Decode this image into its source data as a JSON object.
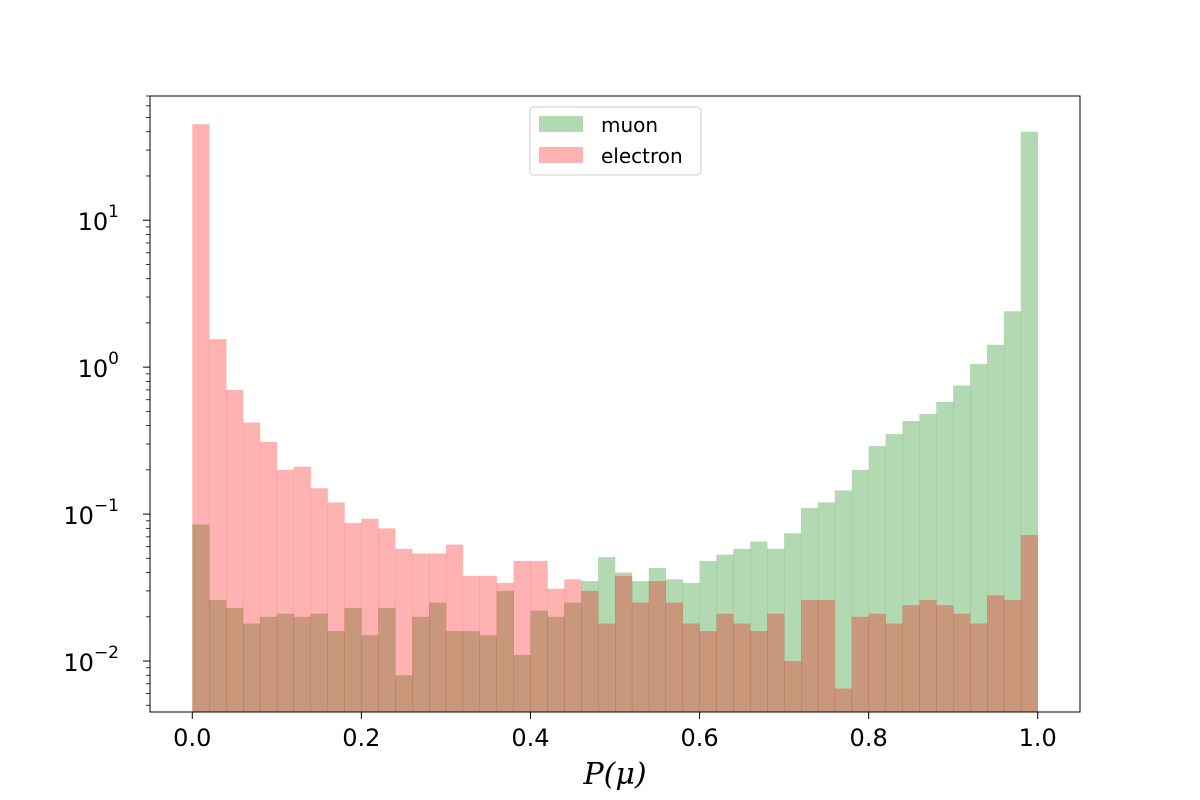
{
  "chart_data": {
    "type": "histogram",
    "title": "",
    "xlabel": "P(μ)",
    "ylabel": "",
    "y_scale": "log",
    "xlim": [
      -0.05,
      1.05
    ],
    "ylim": [
      0.0045,
      70
    ],
    "x_ticks": [
      {
        "value": 0.0,
        "label": "0.0"
      },
      {
        "value": 0.2,
        "label": "0.2"
      },
      {
        "value": 0.4,
        "label": "0.4"
      },
      {
        "value": 0.6,
        "label": "0.6"
      },
      {
        "value": 0.8,
        "label": "0.8"
      },
      {
        "value": 1.0,
        "label": "1.0"
      }
    ],
    "y_ticks": [
      {
        "value": 0.01,
        "base": "10",
        "exp": "−2"
      },
      {
        "value": 0.1,
        "base": "10",
        "exp": "−1"
      },
      {
        "value": 1,
        "base": "10",
        "exp": "0"
      },
      {
        "value": 10,
        "base": "10",
        "exp": "1"
      }
    ],
    "bin_edges_start": 0.0,
    "bin_width": 0.02,
    "legend_position": "upper center",
    "series": [
      {
        "name": "muon",
        "color": "#008000",
        "alpha": 0.3,
        "values": [
          0.085,
          0.026,
          0.023,
          0.018,
          0.02,
          0.021,
          0.02,
          0.021,
          0.016,
          0.023,
          0.015,
          0.023,
          0.008,
          0.02,
          0.025,
          0.016,
          0.016,
          0.015,
          0.03,
          0.011,
          0.022,
          0.02,
          0.025,
          0.035,
          0.051,
          0.04,
          0.035,
          0.043,
          0.036,
          0.034,
          0.048,
          0.053,
          0.058,
          0.065,
          0.058,
          0.074,
          0.11,
          0.12,
          0.145,
          0.2,
          0.29,
          0.35,
          0.43,
          0.48,
          0.58,
          0.75,
          1.05,
          1.42,
          2.4,
          40
        ]
      },
      {
        "name": "electron",
        "color": "#ff0000",
        "alpha": 0.3,
        "values": [
          45,
          1.55,
          0.7,
          0.42,
          0.31,
          0.2,
          0.21,
          0.15,
          0.12,
          0.087,
          0.093,
          0.08,
          0.058,
          0.054,
          0.054,
          0.062,
          0.038,
          0.038,
          0.034,
          0.048,
          0.048,
          0.031,
          0.036,
          0.03,
          0.018,
          0.038,
          0.025,
          0.035,
          0.025,
          0.018,
          0.016,
          0.021,
          0.018,
          0.016,
          0.021,
          0.01,
          0.026,
          0.026,
          0.0065,
          0.02,
          0.021,
          0.018,
          0.024,
          0.026,
          0.024,
          0.021,
          0.018,
          0.028,
          0.026,
          0.072
        ]
      }
    ]
  }
}
